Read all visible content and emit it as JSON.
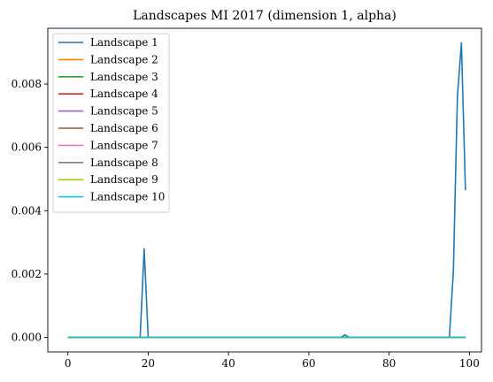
{
  "chart_data": {
    "type": "line",
    "title": "Landscapes MI 2017 (dimension 1, alpha)",
    "xlabel": "",
    "ylabel": "",
    "xlim": [
      -5,
      103
    ],
    "ylim": [
      -0.00046,
      0.00976
    ],
    "xticks": [
      0,
      20,
      40,
      60,
      80,
      100
    ],
    "xtick_labels": [
      "0",
      "20",
      "40",
      "60",
      "80",
      "100"
    ],
    "yticks": [
      0.0,
      0.002,
      0.004,
      0.006,
      0.008
    ],
    "ytick_labels": [
      "0.000",
      "0.002",
      "0.004",
      "0.006",
      "0.008"
    ],
    "grid": false,
    "legend_position": "top-left",
    "series": [
      {
        "name": "Landscape 1",
        "color": "#1f77b4",
        "points": [
          [
            0,
            0
          ],
          [
            18,
            0
          ],
          [
            19,
            0.0028
          ],
          [
            20,
            0
          ],
          [
            68,
            0
          ],
          [
            69,
            8e-05
          ],
          [
            70,
            0
          ],
          [
            95,
            0
          ],
          [
            96,
            0.0021
          ],
          [
            97,
            0.0076
          ],
          [
            98,
            0.0093
          ],
          [
            99,
            0.00465
          ]
        ]
      },
      {
        "name": "Landscape 2",
        "color": "#ff7f0e",
        "points": [
          [
            0,
            0
          ],
          [
            99,
            0
          ]
        ]
      },
      {
        "name": "Landscape 3",
        "color": "#2ca02c",
        "points": [
          [
            0,
            0
          ],
          [
            99,
            0
          ]
        ]
      },
      {
        "name": "Landscape 4",
        "color": "#d62728",
        "points": [
          [
            0,
            0
          ],
          [
            99,
            0
          ]
        ]
      },
      {
        "name": "Landscape 5",
        "color": "#9467bd",
        "points": [
          [
            0,
            0
          ],
          [
            99,
            0
          ]
        ]
      },
      {
        "name": "Landscape 6",
        "color": "#8c564b",
        "points": [
          [
            0,
            0
          ],
          [
            99,
            0
          ]
        ]
      },
      {
        "name": "Landscape 7",
        "color": "#e377c2",
        "points": [
          [
            0,
            0
          ],
          [
            99,
            0
          ]
        ]
      },
      {
        "name": "Landscape 8",
        "color": "#7f7f7f",
        "points": [
          [
            0,
            0
          ],
          [
            99,
            0
          ]
        ]
      },
      {
        "name": "Landscape 9",
        "color": "#bcbd22",
        "points": [
          [
            0,
            0
          ],
          [
            99,
            0
          ]
        ]
      },
      {
        "name": "Landscape 10",
        "color": "#17becf",
        "points": [
          [
            0,
            0
          ],
          [
            99,
            0
          ]
        ]
      }
    ]
  }
}
